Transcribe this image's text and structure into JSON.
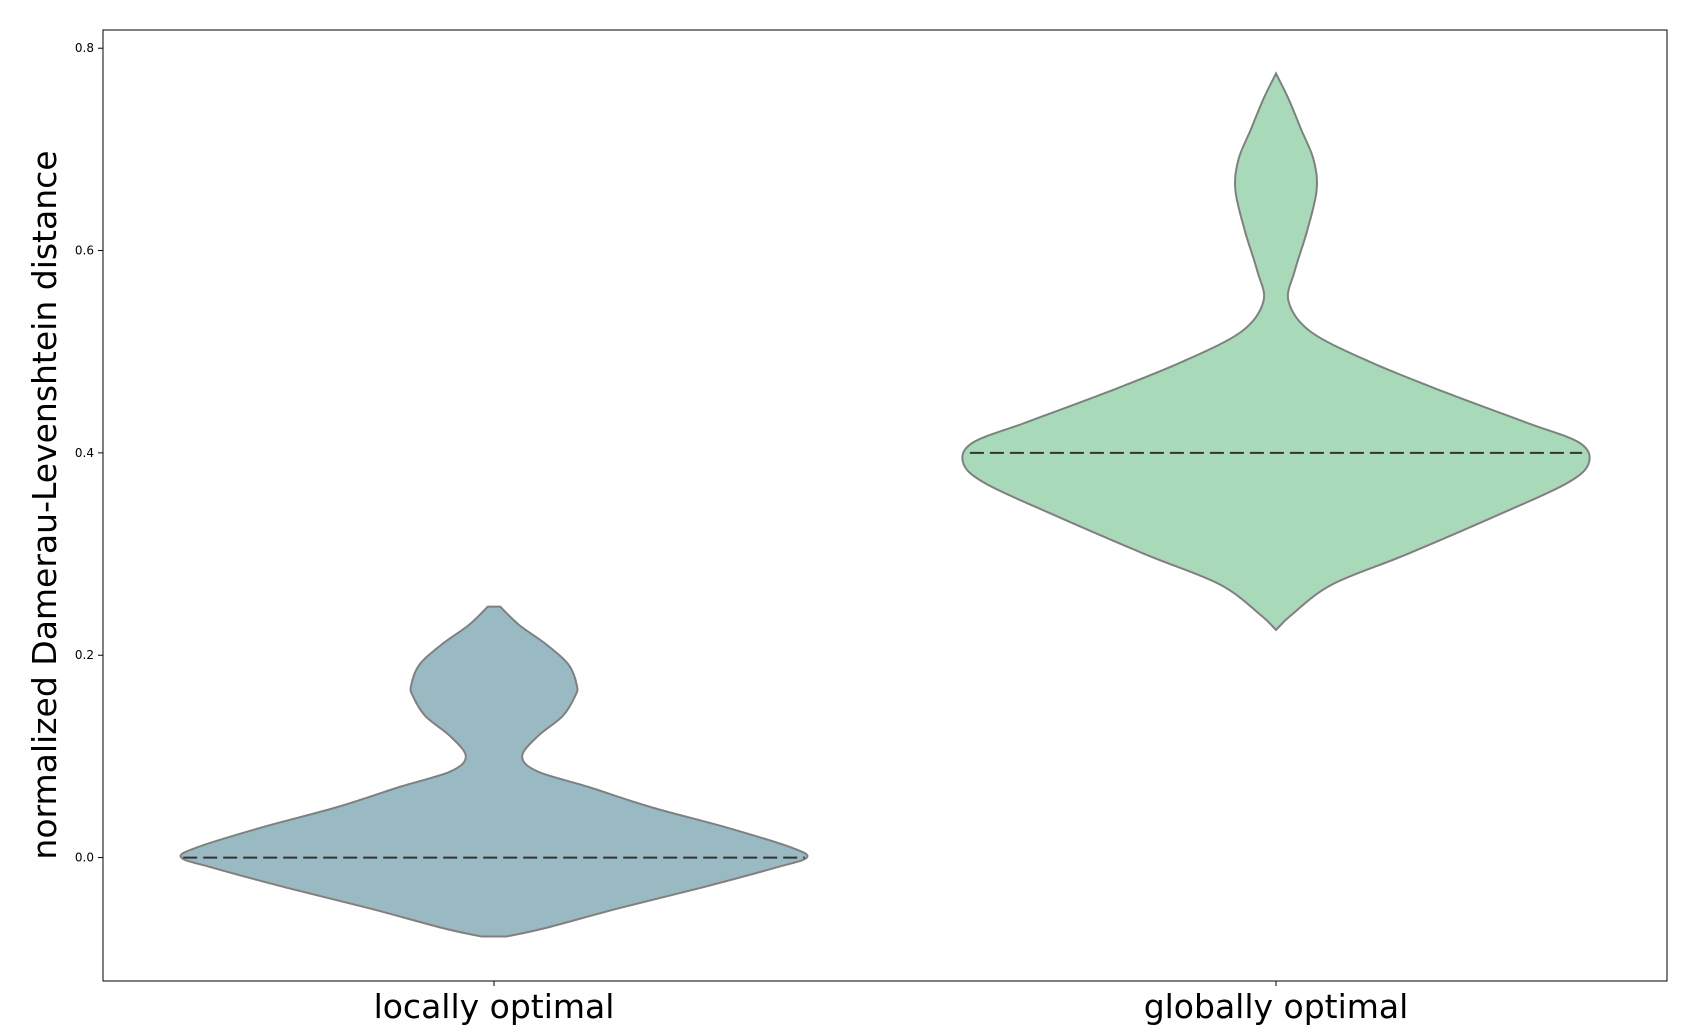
{
  "chart_data": {
    "type": "violin",
    "title": "",
    "xlabel": "",
    "ylabel": "normalized Damerau-Levenshtein distance",
    "ylim": [
      -0.122,
      0.818
    ],
    "yticks": [
      0.0,
      0.2,
      0.4,
      0.6,
      0.8
    ],
    "ytick_labels": [
      "0.0",
      "0.2",
      "0.4",
      "0.6",
      "0.8"
    ],
    "categories": [
      "locally optimal",
      "globally optimal"
    ],
    "grid": false,
    "legend": "none",
    "series": [
      {
        "category": "locally optimal",
        "color": "#99bac2",
        "edge_color": "#808080",
        "median": 0.0,
        "min": -0.078,
        "max": 0.248,
        "profile": [
          [
            -0.078,
            0.04
          ],
          [
            -0.07,
            0.16
          ],
          [
            -0.05,
            0.4
          ],
          [
            -0.03,
            0.66
          ],
          [
            -0.01,
            0.9
          ],
          [
            0.0,
            1.0
          ],
          [
            0.01,
            0.95
          ],
          [
            0.03,
            0.74
          ],
          [
            0.05,
            0.5
          ],
          [
            0.07,
            0.3
          ],
          [
            0.085,
            0.14
          ],
          [
            0.1,
            0.09
          ],
          [
            0.12,
            0.14
          ],
          [
            0.14,
            0.22
          ],
          [
            0.16,
            0.26
          ],
          [
            0.17,
            0.265
          ],
          [
            0.19,
            0.24
          ],
          [
            0.21,
            0.17
          ],
          [
            0.23,
            0.08
          ],
          [
            0.248,
            0.02
          ]
        ]
      },
      {
        "category": "globally optimal",
        "color": "#a8d9b8",
        "edge_color": "#808080",
        "median": 0.4,
        "min": 0.225,
        "max": 0.775,
        "profile": [
          [
            0.225,
            0.0
          ],
          [
            0.24,
            0.05
          ],
          [
            0.27,
            0.18
          ],
          [
            0.3,
            0.42
          ],
          [
            0.34,
            0.72
          ],
          [
            0.37,
            0.93
          ],
          [
            0.39,
            1.0
          ],
          [
            0.41,
            0.97
          ],
          [
            0.43,
            0.8
          ],
          [
            0.46,
            0.54
          ],
          [
            0.49,
            0.3
          ],
          [
            0.52,
            0.11
          ],
          [
            0.55,
            0.04
          ],
          [
            0.58,
            0.06
          ],
          [
            0.62,
            0.1
          ],
          [
            0.66,
            0.13
          ],
          [
            0.69,
            0.12
          ],
          [
            0.72,
            0.08
          ],
          [
            0.75,
            0.04
          ],
          [
            0.775,
            0.0
          ]
        ]
      }
    ]
  }
}
